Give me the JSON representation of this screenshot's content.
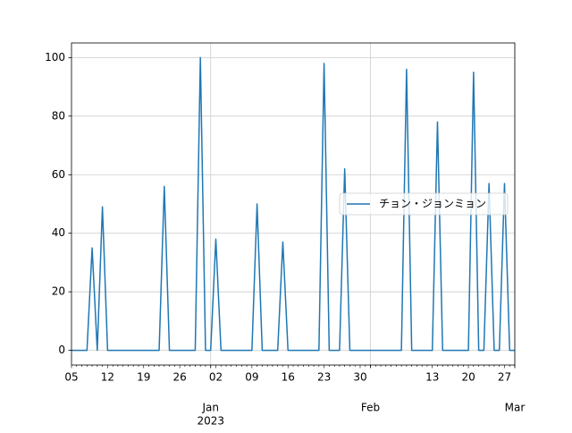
{
  "chart_data": {
    "type": "line",
    "categories": [
      "05",
      null,
      null,
      null,
      null,
      null,
      null,
      "12",
      null,
      null,
      null,
      null,
      null,
      null,
      "19",
      null,
      null,
      null,
      null,
      null,
      null,
      "26",
      null,
      null,
      null,
      null,
      null,
      null,
      "02",
      null,
      null,
      null,
      null,
      null,
      null,
      "09",
      null,
      null,
      null,
      null,
      null,
      null,
      "16",
      null,
      null,
      null,
      null,
      null,
      null,
      "23",
      null,
      null,
      null,
      null,
      null,
      null,
      "30",
      null,
      null,
      null,
      null,
      null,
      null,
      null,
      null,
      null,
      null,
      null,
      null,
      null,
      "13",
      null,
      null,
      null,
      null,
      null,
      null,
      "20",
      null,
      null,
      null,
      null,
      null,
      null,
      "27",
      null,
      null
    ],
    "month_labels": [
      {
        "value": 27,
        "label": "Jan"
      },
      {
        "value": 58,
        "label": "Feb"
      },
      {
        "value": 86,
        "label": "Mar"
      }
    ],
    "year_labels": [
      {
        "value": 27,
        "label": "2023"
      }
    ],
    "series": [
      {
        "name": "チョン・ジョンミョン",
        "color": "#1f77b4",
        "values": [
          0,
          0,
          0,
          0,
          35,
          0,
          49,
          0,
          0,
          0,
          0,
          0,
          0,
          0,
          0,
          0,
          0,
          0,
          56,
          0,
          0,
          0,
          0,
          0,
          0,
          100,
          0,
          0,
          38,
          0,
          0,
          0,
          0,
          0,
          0,
          0,
          50,
          0,
          0,
          0,
          0,
          37,
          0,
          0,
          0,
          0,
          0,
          0,
          0,
          98,
          0,
          0,
          0,
          62,
          0,
          0,
          0,
          0,
          0,
          0,
          0,
          0,
          0,
          0,
          0,
          96,
          0,
          0,
          0,
          0,
          0,
          78,
          0,
          0,
          0,
          0,
          0,
          0,
          95,
          0,
          0,
          57,
          0,
          0,
          57,
          0,
          0
        ]
      }
    ],
    "ylim": [
      -5,
      105
    ],
    "yticks": [
      0,
      20,
      40,
      60,
      80,
      100
    ],
    "grid": true,
    "legend": "center right"
  }
}
